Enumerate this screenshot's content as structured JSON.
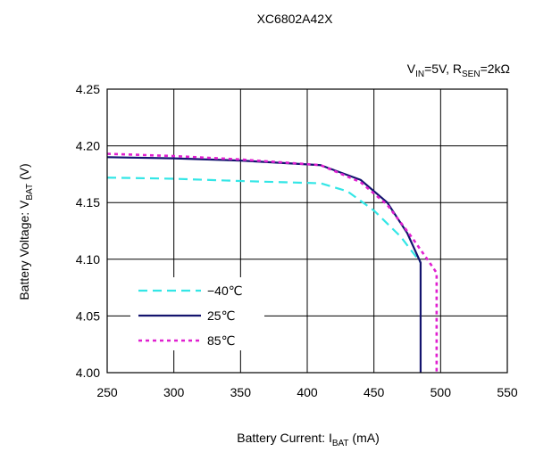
{
  "chart_data": {
    "type": "line",
    "title": "XC6802A42X",
    "condition": {
      "v_prefix": "V",
      "v_sub": "IN",
      "v_value": "=5V, R",
      "r_sub": "SEN",
      "r_value": "=2kΩ"
    },
    "xlabel": {
      "main": "Battery Current: I",
      "sub": "BAT",
      "unit": " (mA)"
    },
    "ylabel": {
      "main": "Battery Voltage: V",
      "sub": "BAT",
      "unit": " (V)"
    },
    "xlim": [
      250,
      550
    ],
    "ylim": [
      4.0,
      4.25
    ],
    "xticks": [
      250,
      300,
      350,
      400,
      450,
      500,
      550
    ],
    "yticks": [
      4.0,
      4.05,
      4.1,
      4.15,
      4.2,
      4.25
    ],
    "grid": true,
    "legend_position": "bottom-left",
    "series": [
      {
        "name": "−40℃",
        "color": "#33e6e6",
        "style": "dashed",
        "x": [
          250,
          300,
          350,
          410,
          430,
          450,
          470,
          485
        ],
        "y": [
          4.172,
          4.171,
          4.169,
          4.167,
          4.16,
          4.143,
          4.12,
          4.097
        ]
      },
      {
        "name": "25℃",
        "color": "#14146e",
        "style": "solid",
        "x": [
          250,
          300,
          350,
          410,
          440,
          460,
          475,
          485,
          485
        ],
        "y": [
          4.19,
          4.189,
          4.187,
          4.183,
          4.17,
          4.15,
          4.123,
          4.097,
          4.0
        ]
      },
      {
        "name": "85℃",
        "color": "#e020d0",
        "style": "dotted",
        "x": [
          250,
          300,
          350,
          410,
          440,
          460,
          478,
          490,
          497,
          497
        ],
        "y": [
          4.193,
          4.191,
          4.188,
          4.183,
          4.168,
          4.148,
          4.12,
          4.1,
          4.088,
          4.0
        ]
      }
    ]
  }
}
